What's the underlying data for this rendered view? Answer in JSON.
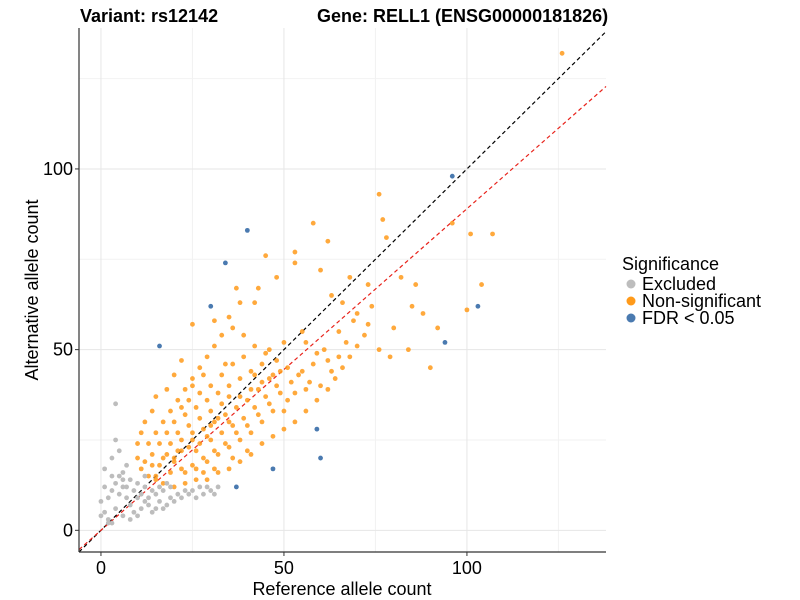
{
  "chart_data": {
    "type": "scatter",
    "title_left": "Variant: rs12142",
    "title_right": "Gene: RELL1 (ENSG00000181826)",
    "xlabel": "Reference allele count",
    "ylabel": "Alternative allele count",
    "xlim": [
      -6,
      138
    ],
    "ylim": [
      -6,
      139
    ],
    "x_ticks": [
      0,
      50,
      100
    ],
    "y_ticks": [
      0,
      50,
      100
    ],
    "grid": true,
    "legend_placement": "right",
    "legend": {
      "title": "Significance",
      "entries": [
        {
          "key": "excluded",
          "label": "Excluded",
          "color": "#bdbdbd"
        },
        {
          "key": "nonsig",
          "label": "Non-significant",
          "color": "#ff9a1a"
        },
        {
          "key": "fdr",
          "label": "FDR < 0.05",
          "color": "#4a7ab0"
        }
      ]
    },
    "reference_lines": [
      {
        "name": "identity",
        "slope": 1.0,
        "intercept": 0,
        "color": "#000000",
        "style": "dashed"
      },
      {
        "name": "fit",
        "slope": 0.89,
        "intercept": 0,
        "color": "#e8231b",
        "style": "dashed"
      }
    ],
    "series": [
      {
        "key": "fdr",
        "points": [
          [
            16,
            51
          ],
          [
            34,
            74
          ],
          [
            40,
            83
          ],
          [
            30,
            62
          ],
          [
            47,
            17
          ],
          [
            37,
            12
          ],
          [
            59,
            28
          ],
          [
            60,
            20
          ],
          [
            94,
            52
          ],
          [
            103,
            62
          ],
          [
            96,
            98
          ]
        ]
      },
      {
        "key": "nonsig",
        "points": [
          [
            126,
            132
          ],
          [
            107,
            82
          ],
          [
            101,
            82
          ],
          [
            104,
            68
          ],
          [
            100,
            61
          ],
          [
            96,
            85
          ],
          [
            78,
            81
          ],
          [
            77,
            86
          ],
          [
            76,
            93
          ],
          [
            58,
            85
          ],
          [
            62,
            80
          ],
          [
            53,
            77
          ],
          [
            45,
            76
          ],
          [
            53,
            74
          ],
          [
            60,
            72
          ],
          [
            68,
            70
          ],
          [
            73,
            68
          ],
          [
            82,
            70
          ],
          [
            85,
            62
          ],
          [
            88,
            60
          ],
          [
            80,
            56
          ],
          [
            92,
            56
          ],
          [
            84,
            50
          ],
          [
            79,
            48
          ],
          [
            73,
            57
          ],
          [
            70,
            60
          ],
          [
            66,
            63
          ],
          [
            63,
            65
          ],
          [
            48,
            70
          ],
          [
            43,
            67
          ],
          [
            37,
            67
          ],
          [
            35,
            59
          ],
          [
            38,
            63
          ],
          [
            42,
            63
          ],
          [
            31,
            58
          ],
          [
            25,
            57
          ],
          [
            22,
            47
          ],
          [
            20,
            43
          ],
          [
            18,
            39
          ],
          [
            15,
            37
          ],
          [
            14,
            33
          ],
          [
            12,
            30
          ],
          [
            11,
            27
          ],
          [
            10,
            24
          ],
          [
            10,
            20
          ],
          [
            11,
            17
          ],
          [
            13,
            15
          ],
          [
            15,
            14
          ],
          [
            17,
            13
          ],
          [
            20,
            12
          ],
          [
            23,
            13
          ],
          [
            26,
            14
          ],
          [
            29,
            14
          ],
          [
            32,
            16
          ],
          [
            35,
            17
          ],
          [
            38,
            19
          ],
          [
            41,
            21
          ],
          [
            44,
            24
          ],
          [
            47,
            26
          ],
          [
            50,
            28
          ],
          [
            53,
            30
          ],
          [
            56,
            33
          ],
          [
            59,
            36
          ],
          [
            62,
            39
          ],
          [
            64,
            42
          ],
          [
            66,
            45
          ],
          [
            68,
            48
          ],
          [
            70,
            51
          ],
          [
            72,
            54
          ],
          [
            61,
            50
          ],
          [
            58,
            46
          ],
          [
            55,
            44
          ],
          [
            52,
            41
          ],
          [
            49,
            38
          ],
          [
            46,
            35
          ],
          [
            43,
            32
          ],
          [
            40,
            29
          ],
          [
            37,
            27
          ],
          [
            34,
            24
          ],
          [
            31,
            22
          ],
          [
            28,
            20
          ],
          [
            25,
            18
          ],
          [
            22,
            17
          ],
          [
            19,
            16
          ],
          [
            16,
            18
          ],
          [
            14,
            21
          ],
          [
            13,
            24
          ],
          [
            15,
            27
          ],
          [
            17,
            30
          ],
          [
            19,
            33
          ],
          [
            21,
            36
          ],
          [
            23,
            39
          ],
          [
            25,
            42
          ],
          [
            27,
            45
          ],
          [
            29,
            48
          ],
          [
            31,
            51
          ],
          [
            33,
            54
          ],
          [
            36,
            56
          ],
          [
            39,
            54
          ],
          [
            42,
            51
          ],
          [
            45,
            49
          ],
          [
            48,
            47
          ],
          [
            51,
            45
          ],
          [
            54,
            43
          ],
          [
            57,
            41
          ],
          [
            60,
            40
          ],
          [
            63,
            44
          ],
          [
            65,
            48
          ],
          [
            67,
            52
          ],
          [
            55,
            55
          ],
          [
            50,
            52
          ],
          [
            46,
            50
          ],
          [
            44,
            46
          ],
          [
            41,
            44
          ],
          [
            38,
            42
          ],
          [
            35,
            40
          ],
          [
            32,
            38
          ],
          [
            29,
            36
          ],
          [
            26,
            34
          ],
          [
            23,
            32
          ],
          [
            20,
            30
          ],
          [
            18,
            27
          ],
          [
            16,
            24
          ],
          [
            18,
            21
          ],
          [
            21,
            22
          ],
          [
            24,
            23
          ],
          [
            27,
            24
          ],
          [
            30,
            25
          ],
          [
            33,
            27
          ],
          [
            36,
            29
          ],
          [
            39,
            31
          ],
          [
            42,
            34
          ],
          [
            45,
            37
          ],
          [
            48,
            40
          ],
          [
            51,
            36
          ],
          [
            47,
            33
          ],
          [
            44,
            30
          ],
          [
            41,
            27
          ],
          [
            38,
            25
          ],
          [
            35,
            23
          ],
          [
            32,
            21
          ],
          [
            29,
            19
          ],
          [
            26,
            17
          ],
          [
            23,
            16
          ],
          [
            20,
            19
          ],
          [
            22,
            25
          ],
          [
            25,
            27
          ],
          [
            28,
            28
          ],
          [
            31,
            30
          ],
          [
            34,
            32
          ],
          [
            37,
            34
          ],
          [
            40,
            36
          ],
          [
            43,
            39
          ],
          [
            46,
            42
          ],
          [
            49,
            44
          ],
          [
            24,
            36
          ],
          [
            27,
            38
          ],
          [
            30,
            40
          ],
          [
            33,
            43
          ],
          [
            36,
            46
          ],
          [
            39,
            48
          ],
          [
            30,
            33
          ],
          [
            33,
            35
          ],
          [
            27,
            31
          ],
          [
            24,
            29
          ],
          [
            21,
            27
          ],
          [
            19,
            24
          ],
          [
            17,
            20
          ],
          [
            14,
            18
          ],
          [
            12,
            19
          ],
          [
            26,
            22
          ],
          [
            30,
            29
          ],
          [
            35,
            37
          ],
          [
            41,
            39
          ],
          [
            44,
            41
          ],
          [
            47,
            43
          ],
          [
            50,
            33
          ],
          [
            53,
            38
          ],
          [
            56,
            39
          ],
          [
            40,
            22
          ],
          [
            36,
            20
          ],
          [
            31,
            17
          ],
          [
            28,
            16
          ],
          [
            34,
            46
          ],
          [
            28,
            43
          ],
          [
            25,
            40
          ],
          [
            22,
            34
          ],
          [
            56,
            52
          ],
          [
            59,
            49
          ],
          [
            62,
            47
          ],
          [
            65,
            55
          ],
          [
            69,
            58
          ],
          [
            74,
            62
          ],
          [
            76,
            50
          ],
          [
            86,
            68
          ],
          [
            90,
            45
          ],
          [
            35,
            30
          ],
          [
            38,
            37
          ],
          [
            42,
            43
          ],
          [
            25,
            25
          ],
          [
            20,
            20
          ],
          [
            15,
            15
          ],
          [
            29,
            26
          ],
          [
            32,
            31
          ],
          [
            22,
            22
          ]
        ]
      },
      {
        "key": "excluded",
        "points": [
          [
            0,
            8
          ],
          [
            1,
            5
          ],
          [
            2,
            3
          ],
          [
            3,
            2
          ],
          [
            4,
            6
          ],
          [
            5,
            10
          ],
          [
            6,
            14
          ],
          [
            7,
            18
          ],
          [
            4,
            35
          ],
          [
            3,
            20
          ],
          [
            5,
            22
          ],
          [
            6,
            12
          ],
          [
            7,
            9
          ],
          [
            8,
            7
          ],
          [
            9,
            5
          ],
          [
            10,
            4
          ],
          [
            11,
            6
          ],
          [
            12,
            8
          ],
          [
            13,
            7
          ],
          [
            14,
            5
          ],
          [
            15,
            6
          ],
          [
            16,
            8
          ],
          [
            17,
            6
          ],
          [
            18,
            7
          ],
          [
            19,
            9
          ],
          [
            20,
            8
          ],
          [
            21,
            10
          ],
          [
            22,
            9
          ],
          [
            23,
            11
          ],
          [
            24,
            10
          ],
          [
            25,
            11
          ],
          [
            26,
            9
          ],
          [
            27,
            12
          ],
          [
            28,
            10
          ],
          [
            29,
            12
          ],
          [
            30,
            11
          ],
          [
            31,
            10
          ],
          [
            32,
            12
          ],
          [
            2,
            9
          ],
          [
            3,
            11
          ],
          [
            4,
            13
          ],
          [
            5,
            15
          ],
          [
            6,
            16
          ],
          [
            7,
            12
          ],
          [
            8,
            14
          ],
          [
            9,
            11
          ],
          [
            10,
            13
          ],
          [
            11,
            10
          ],
          [
            12,
            12
          ],
          [
            13,
            9
          ],
          [
            14,
            11
          ],
          [
            15,
            10
          ],
          [
            16,
            12
          ],
          [
            17,
            11
          ],
          [
            18,
            13
          ],
          [
            19,
            12
          ],
          [
            1,
            12
          ],
          [
            0,
            4
          ],
          [
            2,
            2
          ],
          [
            6,
            4
          ],
          [
            8,
            3
          ],
          [
            10,
            9
          ],
          [
            12,
            15
          ],
          [
            3,
            15
          ],
          [
            1,
            17
          ],
          [
            4,
            25
          ]
        ]
      }
    ]
  }
}
